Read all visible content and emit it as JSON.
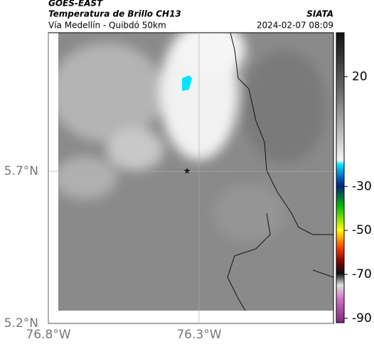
{
  "header": {
    "source": "GOES-EAST",
    "product": "Temperatura de Brillo CH13",
    "org": "SIATA",
    "route": "Vía Medellín - Quibdó 50km",
    "time": "2024-02-07 08:09"
  },
  "map": {
    "xlim": [
      -76.8,
      -75.854
    ],
    "ylim": [
      5.2,
      6.156
    ],
    "xticks": [
      {
        "value": -76.8,
        "label": "76.8°W"
      },
      {
        "value": -76.3,
        "label": "76.3°W"
      }
    ],
    "yticks": [
      {
        "value": 5.7,
        "label": "5.7°N"
      },
      {
        "value": 5.2,
        "label": "5.2°N"
      }
    ]
  },
  "colorbar": {
    "lim": [
      40,
      -92
    ],
    "ticks": [
      20,
      -30,
      -50,
      -70,
      -90
    ]
  }
}
